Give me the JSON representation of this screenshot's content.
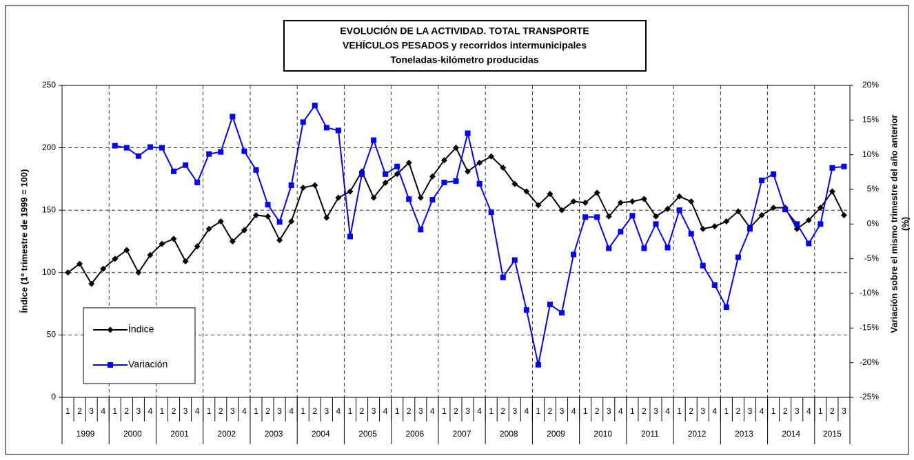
{
  "chart_data": {
    "type": "line",
    "title": [
      "EVOLUCIÓN DE LA ACTIVIDAD. TOTAL TRANSPORTE",
      "VEHÍCULOS PESADOS y recorridos intermunicipales",
      "Toneladas-kilómetro producidas"
    ],
    "ylabel": "Índice (1º trimestre de 1999 = 100)",
    "y2label": [
      "Variación sobre el mismo trimestre del año anterior",
      "(%)"
    ],
    "categories": [
      "1",
      "2",
      "3",
      "4",
      "1",
      "2",
      "3",
      "4",
      "1",
      "2",
      "3",
      "4",
      "1",
      "2",
      "3",
      "4",
      "1",
      "2",
      "3",
      "4",
      "1",
      "2",
      "3",
      "4",
      "1",
      "2",
      "3",
      "4",
      "1",
      "2",
      "3",
      "4",
      "1",
      "2",
      "3",
      "4",
      "1",
      "2",
      "3",
      "4",
      "1",
      "2",
      "3",
      "4",
      "1",
      "2",
      "3",
      "4",
      "1",
      "2",
      "3",
      "4",
      "1",
      "2",
      "3",
      "4",
      "1",
      "2",
      "3",
      "4",
      "1",
      "2",
      "3",
      "4",
      "1",
      "2",
      "3"
    ],
    "years": [
      "1999",
      "2000",
      "2001",
      "2002",
      "2003",
      "2004",
      "2005",
      "2006",
      "2007",
      "2008",
      "2009",
      "2010",
      "2011",
      "2012",
      "2013",
      "2014",
      "2015"
    ],
    "ylim": [
      0,
      250
    ],
    "yticks": [
      0,
      50,
      100,
      150,
      200,
      250
    ],
    "y2lim": [
      -25,
      20
    ],
    "y2ticks": [
      {
        "value": -25,
        "label": "-25%"
      },
      {
        "value": -20,
        "label": "-20%"
      },
      {
        "value": -15,
        "label": "-15%"
      },
      {
        "value": -10,
        "label": "-10%"
      },
      {
        "value": -5,
        "label": "-5%"
      },
      {
        "value": 0,
        "label": "0%"
      },
      {
        "value": 5,
        "label": "5%"
      },
      {
        "value": 10,
        "label": "10%"
      },
      {
        "value": 15,
        "label": "15%"
      },
      {
        "value": 20,
        "label": "20%"
      }
    ],
    "grid": true,
    "series": [
      {
        "name": "Índice",
        "color": "#000000",
        "marker": "diamond",
        "values": [
          100,
          107,
          91,
          103,
          111,
          118,
          100,
          114,
          123,
          127,
          109,
          121,
          135,
          141,
          125,
          134,
          146,
          145,
          126,
          141,
          168,
          170,
          144,
          160,
          165,
          181,
          160,
          172,
          179,
          188,
          160,
          177,
          190,
          200,
          181,
          188,
          193,
          184,
          171,
          165,
          154,
          163,
          150,
          157,
          156,
          164,
          145,
          156,
          157,
          159,
          145,
          151,
          161,
          157,
          135,
          137,
          141,
          149,
          136,
          146,
          152,
          152,
          135,
          142,
          152,
          165,
          146
        ]
      },
      {
        "name": "Variación",
        "color": "#0000ff",
        "marker": "square",
        "axis": "y2",
        "values": [
          null,
          null,
          null,
          null,
          11.3,
          11.0,
          9.8,
          11.1,
          11.0,
          7.6,
          8.5,
          6.0,
          10.1,
          10.4,
          15.5,
          10.5,
          7.8,
          2.8,
          0.3,
          5.6,
          14.7,
          17.1,
          13.9,
          13.5,
          -1.8,
          7.2,
          12.1,
          7.2,
          8.3,
          3.6,
          -0.8,
          3.5,
          6.0,
          6.2,
          13.1,
          5.8,
          1.7,
          -7.7,
          -5.2,
          -12.4,
          -20.3,
          -11.6,
          -12.8,
          -4.4,
          1.0,
          1.0,
          -3.5,
          -1.1,
          1.2,
          -3.5,
          0,
          -3.4,
          2.0,
          -1.4,
          -6.0,
          -8.8,
          -12.0,
          -4.8,
          -0.7,
          6.3,
          7.2,
          2.1,
          0,
          -2.8,
          0,
          8.1,
          8.3
        ]
      }
    ]
  }
}
